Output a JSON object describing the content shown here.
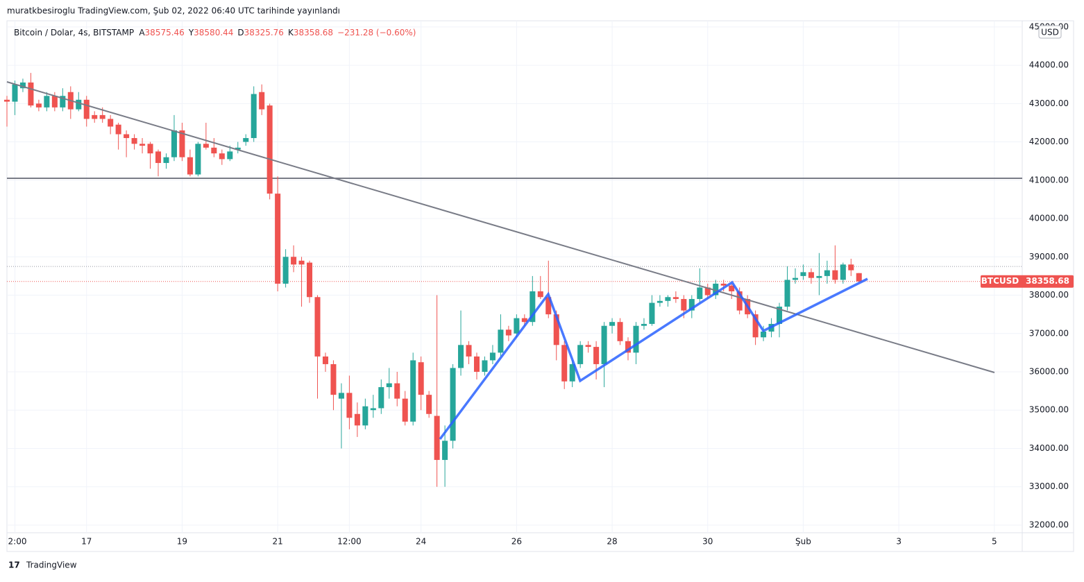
{
  "header": {
    "publisher": "muratkbesiroglu TradingView.com, Şub 02, 2022 06:40 UTC tarihinde yayınlandı",
    "footer": "TradingView"
  },
  "chart_data": {
    "type": "candlestick",
    "title": "Bitcoin / Dolar, 4s, BITSTAMP",
    "ohlc_legend": [
      {
        "key": "A",
        "value": "38575.46"
      },
      {
        "key": "Y",
        "value": "38580.44"
      },
      {
        "key": "D",
        "value": "38325.76"
      },
      {
        "key": "K",
        "value": "38358.68"
      }
    ],
    "change": "−231.28 (−0.60%)",
    "currency": "USD",
    "up_color": "#26a69a",
    "down_color": "#ef5350",
    "xlim": [
      0,
      127.5
    ],
    "ylim": [
      31800,
      45160
    ],
    "xticks": [
      {
        "value": 1,
        "label": "2:00"
      },
      {
        "value": 10,
        "label": "17"
      },
      {
        "value": 22,
        "label": "19"
      },
      {
        "value": 34,
        "label": "21"
      },
      {
        "value": 43,
        "label": "12:00"
      },
      {
        "value": 52,
        "label": "24"
      },
      {
        "value": 64,
        "label": "26"
      },
      {
        "value": 76,
        "label": "28"
      },
      {
        "value": 88,
        "label": "30"
      },
      {
        "value": 100,
        "label": "Şub"
      },
      {
        "value": 112,
        "label": "3"
      },
      {
        "value": 124,
        "label": "5"
      }
    ],
    "yticks": [
      {
        "value": 32000,
        "label": "32000.00"
      },
      {
        "value": 33000,
        "label": "33000.00"
      },
      {
        "value": 34000,
        "label": "34000.00"
      },
      {
        "value": 35000,
        "label": "35000.00"
      },
      {
        "value": 36000,
        "label": "36000.00"
      },
      {
        "value": 37000,
        "label": "37000.00"
      },
      {
        "value": 38000,
        "label": "38000.00"
      },
      {
        "value": 39000,
        "label": "39000.00"
      },
      {
        "value": 40000,
        "label": "40000.00"
      },
      {
        "value": 41000,
        "label": "41000.00"
      },
      {
        "value": 42000,
        "label": "42000.00"
      },
      {
        "value": 43000,
        "label": "43000.00"
      },
      {
        "value": 44000,
        "label": "44000.00"
      },
      {
        "value": 45000,
        "label": "45000.00"
      }
    ],
    "grid": true,
    "horizontal_line": 41050,
    "high_line": 38750,
    "price_line": {
      "symbol": "BTCUSD",
      "value": 38358.68,
      "value_label": "38358.68"
    },
    "ohlc": [
      [
        43100,
        43200,
        42400,
        43050
      ],
      [
        43050,
        43600,
        42700,
        43500
      ],
      [
        43400,
        43650,
        43300,
        43550
      ],
      [
        43550,
        43800,
        42900,
        42950
      ],
      [
        43000,
        43100,
        42800,
        42900
      ],
      [
        42900,
        43300,
        42800,
        43200
      ],
      [
        43200,
        43300,
        42800,
        42900
      ],
      [
        42900,
        43400,
        42800,
        43200
      ],
      [
        43300,
        43450,
        42600,
        42850
      ],
      [
        42850,
        43300,
        42800,
        43100
      ],
      [
        43100,
        43200,
        42400,
        42600
      ],
      [
        42700,
        42800,
        42500,
        42600
      ],
      [
        42700,
        42900,
        42500,
        42600
      ],
      [
        42600,
        42700,
        42200,
        42400
      ],
      [
        42450,
        42500,
        41800,
        42200
      ],
      [
        42200,
        42300,
        41600,
        42100
      ],
      [
        42100,
        42200,
        41800,
        41950
      ],
      [
        41950,
        42100,
        41700,
        41900
      ],
      [
        41950,
        42000,
        41300,
        41700
      ],
      [
        41750,
        41800,
        41100,
        41450
      ],
      [
        41450,
        41700,
        41300,
        41600
      ],
      [
        41600,
        42700,
        41500,
        42300
      ],
      [
        42300,
        42500,
        41500,
        41600
      ],
      [
        41600,
        41800,
        41100,
        41150
      ],
      [
        41150,
        42000,
        41100,
        41950
      ],
      [
        41950,
        42500,
        41800,
        41850
      ],
      [
        41850,
        42100,
        41600,
        41700
      ],
      [
        41700,
        41800,
        41400,
        41550
      ],
      [
        41550,
        41900,
        41500,
        41750
      ],
      [
        41800,
        42000,
        41700,
        41850
      ],
      [
        42000,
        42200,
        41900,
        42100
      ],
      [
        42100,
        43450,
        42000,
        43250
      ],
      [
        43300,
        43500,
        42700,
        42850
      ],
      [
        42950,
        43000,
        40500,
        40650
      ],
      [
        40650,
        41100,
        38100,
        38300
      ],
      [
        38300,
        39200,
        38200,
        39000
      ],
      [
        39000,
        39300,
        38600,
        38800
      ],
      [
        38900,
        39000,
        37700,
        38800
      ],
      [
        38850,
        38900,
        37800,
        37950
      ],
      [
        37950,
        38000,
        35300,
        36400
      ],
      [
        36400,
        36500,
        36000,
        36200
      ],
      [
        36200,
        36300,
        35000,
        35400
      ],
      [
        35300,
        35700,
        34000,
        35450
      ],
      [
        35450,
        35900,
        34500,
        34800
      ],
      [
        34900,
        35200,
        34300,
        34600
      ],
      [
        34600,
        35300,
        34500,
        35100
      ],
      [
        35000,
        35400,
        34800,
        35050
      ],
      [
        35050,
        35800,
        34900,
        35600
      ],
      [
        35600,
        36100,
        35300,
        35700
      ],
      [
        35700,
        36000,
        35100,
        35300
      ],
      [
        35300,
        35500,
        34600,
        34700
      ],
      [
        34700,
        36500,
        34600,
        36300
      ],
      [
        36250,
        36400,
        35000,
        35400
      ],
      [
        35400,
        35500,
        34800,
        34900
      ],
      [
        34850,
        38000,
        33000,
        33700
      ],
      [
        33700,
        34600,
        33000,
        34200
      ],
      [
        34200,
        36200,
        34000,
        36100
      ],
      [
        36100,
        37600,
        35900,
        36700
      ],
      [
        36700,
        36800,
        36200,
        36400
      ],
      [
        36400,
        36500,
        35800,
        36000
      ],
      [
        36000,
        36400,
        35900,
        36300
      ],
      [
        36300,
        36700,
        36200,
        36500
      ],
      [
        36500,
        37500,
        36400,
        37100
      ],
      [
        37100,
        37200,
        36800,
        36950
      ],
      [
        37000,
        37500,
        36900,
        37400
      ],
      [
        37400,
        37500,
        37200,
        37300
      ],
      [
        37300,
        38500,
        37200,
        38100
      ],
      [
        38100,
        38500,
        37900,
        37950
      ],
      [
        37950,
        38900,
        37400,
        37500
      ],
      [
        37500,
        37600,
        36300,
        36700
      ],
      [
        36700,
        36800,
        35550,
        35750
      ],
      [
        35750,
        36300,
        35600,
        36200
      ],
      [
        36200,
        36800,
        36100,
        36700
      ],
      [
        36700,
        36800,
        36500,
        36650
      ],
      [
        36650,
        36800,
        35800,
        36200
      ],
      [
        36200,
        37300,
        35600,
        37200
      ],
      [
        37200,
        37400,
        37000,
        37300
      ],
      [
        37300,
        37400,
        36700,
        36800
      ],
      [
        36800,
        36900,
        36300,
        36500
      ],
      [
        36500,
        37300,
        36200,
        37200
      ],
      [
        37200,
        37400,
        37100,
        37250
      ],
      [
        37250,
        38000,
        37200,
        37800
      ],
      [
        37800,
        38000,
        37700,
        37850
      ],
      [
        37850,
        38000,
        37700,
        37950
      ],
      [
        37950,
        38100,
        37800,
        37900
      ],
      [
        37900,
        38000,
        37400,
        37600
      ],
      [
        37600,
        38000,
        37400,
        37900
      ],
      [
        37900,
        38700,
        37800,
        38200
      ],
      [
        38200,
        38300,
        37900,
        38000
      ],
      [
        38000,
        38400,
        37900,
        38300
      ],
      [
        38300,
        38400,
        38100,
        38250
      ],
      [
        38250,
        38300,
        37900,
        38100
      ],
      [
        38100,
        38200,
        37500,
        37600
      ],
      [
        37900,
        38000,
        37400,
        37500
      ],
      [
        37500,
        37600,
        36700,
        36900
      ],
      [
        36900,
        37200,
        36800,
        37050
      ],
      [
        37050,
        37400,
        36900,
        37250
      ],
      [
        37250,
        37800,
        36900,
        37700
      ],
      [
        37700,
        38750,
        37600,
        38400
      ],
      [
        38400,
        38700,
        38300,
        38450
      ],
      [
        38500,
        38800,
        38400,
        38600
      ],
      [
        38600,
        38700,
        38300,
        38450
      ],
      [
        38450,
        39100,
        38000,
        38500
      ],
      [
        38500,
        38900,
        38300,
        38650
      ],
      [
        38650,
        39300,
        38300,
        38400
      ],
      [
        38400,
        38850,
        38300,
        38800
      ],
      [
        38800,
        38950,
        38500,
        38650
      ],
      [
        38575.46,
        38580.44,
        38325.76,
        38358.68
      ]
    ]
  }
}
